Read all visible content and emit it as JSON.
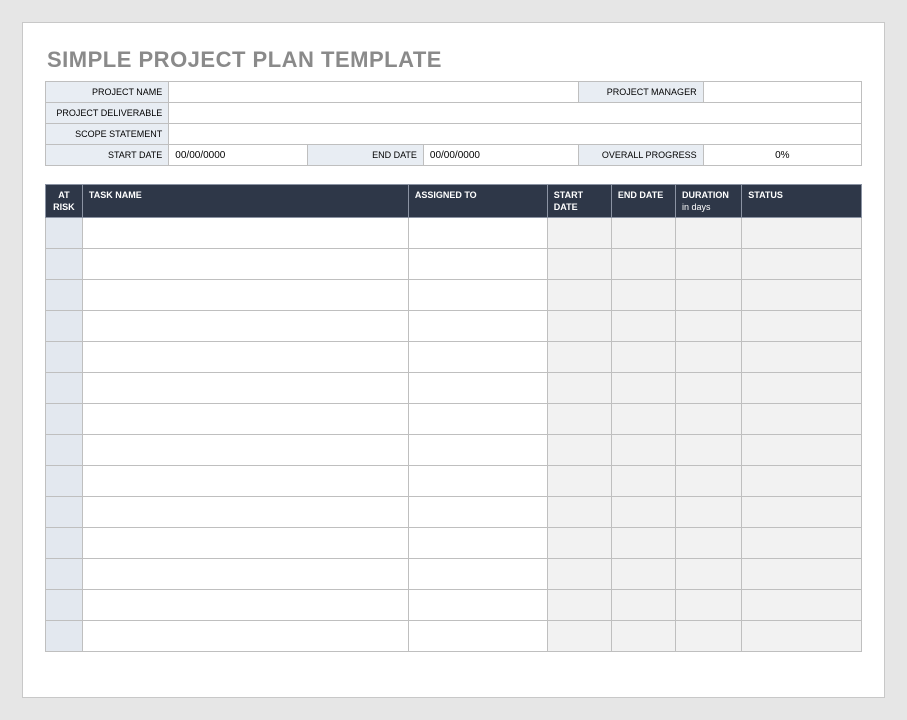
{
  "title": "SIMPLE PROJECT PLAN TEMPLATE",
  "info": {
    "labels": {
      "project_name": "PROJECT NAME",
      "project_manager": "PROJECT MANAGER",
      "project_deliverable": "PROJECT DELIVERABLE",
      "scope_statement": "SCOPE STATEMENT",
      "start_date": "START DATE",
      "end_date": "END DATE",
      "overall_progress": "OVERALL PROGRESS"
    },
    "values": {
      "project_name": "",
      "project_manager": "",
      "project_deliverable": "",
      "scope_statement": "",
      "start_date": "00/00/0000",
      "end_date": "00/00/0000",
      "overall_progress": "0%"
    }
  },
  "table": {
    "headers": {
      "at_risk": "AT RISK",
      "task_name": "TASK NAME",
      "assigned_to": "ASSIGNED TO",
      "start_date": "START DATE",
      "end_date": "END DATE",
      "duration": "DURATION",
      "duration_sub": "in days",
      "status": "STATUS"
    },
    "row_count": 14,
    "rows": [
      {
        "at_risk": "",
        "task_name": "",
        "assigned_to": "",
        "start_date": "",
        "end_date": "",
        "duration": "",
        "status": ""
      },
      {
        "at_risk": "",
        "task_name": "",
        "assigned_to": "",
        "start_date": "",
        "end_date": "",
        "duration": "",
        "status": ""
      },
      {
        "at_risk": "",
        "task_name": "",
        "assigned_to": "",
        "start_date": "",
        "end_date": "",
        "duration": "",
        "status": ""
      },
      {
        "at_risk": "",
        "task_name": "",
        "assigned_to": "",
        "start_date": "",
        "end_date": "",
        "duration": "",
        "status": ""
      },
      {
        "at_risk": "",
        "task_name": "",
        "assigned_to": "",
        "start_date": "",
        "end_date": "",
        "duration": "",
        "status": ""
      },
      {
        "at_risk": "",
        "task_name": "",
        "assigned_to": "",
        "start_date": "",
        "end_date": "",
        "duration": "",
        "status": ""
      },
      {
        "at_risk": "",
        "task_name": "",
        "assigned_to": "",
        "start_date": "",
        "end_date": "",
        "duration": "",
        "status": ""
      },
      {
        "at_risk": "",
        "task_name": "",
        "assigned_to": "",
        "start_date": "",
        "end_date": "",
        "duration": "",
        "status": ""
      },
      {
        "at_risk": "",
        "task_name": "",
        "assigned_to": "",
        "start_date": "",
        "end_date": "",
        "duration": "",
        "status": ""
      },
      {
        "at_risk": "",
        "task_name": "",
        "assigned_to": "",
        "start_date": "",
        "end_date": "",
        "duration": "",
        "status": ""
      },
      {
        "at_risk": "",
        "task_name": "",
        "assigned_to": "",
        "start_date": "",
        "end_date": "",
        "duration": "",
        "status": ""
      },
      {
        "at_risk": "",
        "task_name": "",
        "assigned_to": "",
        "start_date": "",
        "end_date": "",
        "duration": "",
        "status": ""
      },
      {
        "at_risk": "",
        "task_name": "",
        "assigned_to": "",
        "start_date": "",
        "end_date": "",
        "duration": "",
        "status": ""
      },
      {
        "at_risk": "",
        "task_name": "",
        "assigned_to": "",
        "start_date": "",
        "end_date": "",
        "duration": "",
        "status": ""
      }
    ]
  },
  "colors": {
    "page_bg": "#e6e6e6",
    "paper_bg": "#ffffff",
    "title_color": "#8a8a8a",
    "label_bg": "#e8edf3",
    "header_bg": "#2e3748",
    "header_border": "#8b93a3",
    "cell_border": "#bfbfbf",
    "risk_bg": "#e3e8ef",
    "grayed_bg": "#f2f2f2"
  }
}
